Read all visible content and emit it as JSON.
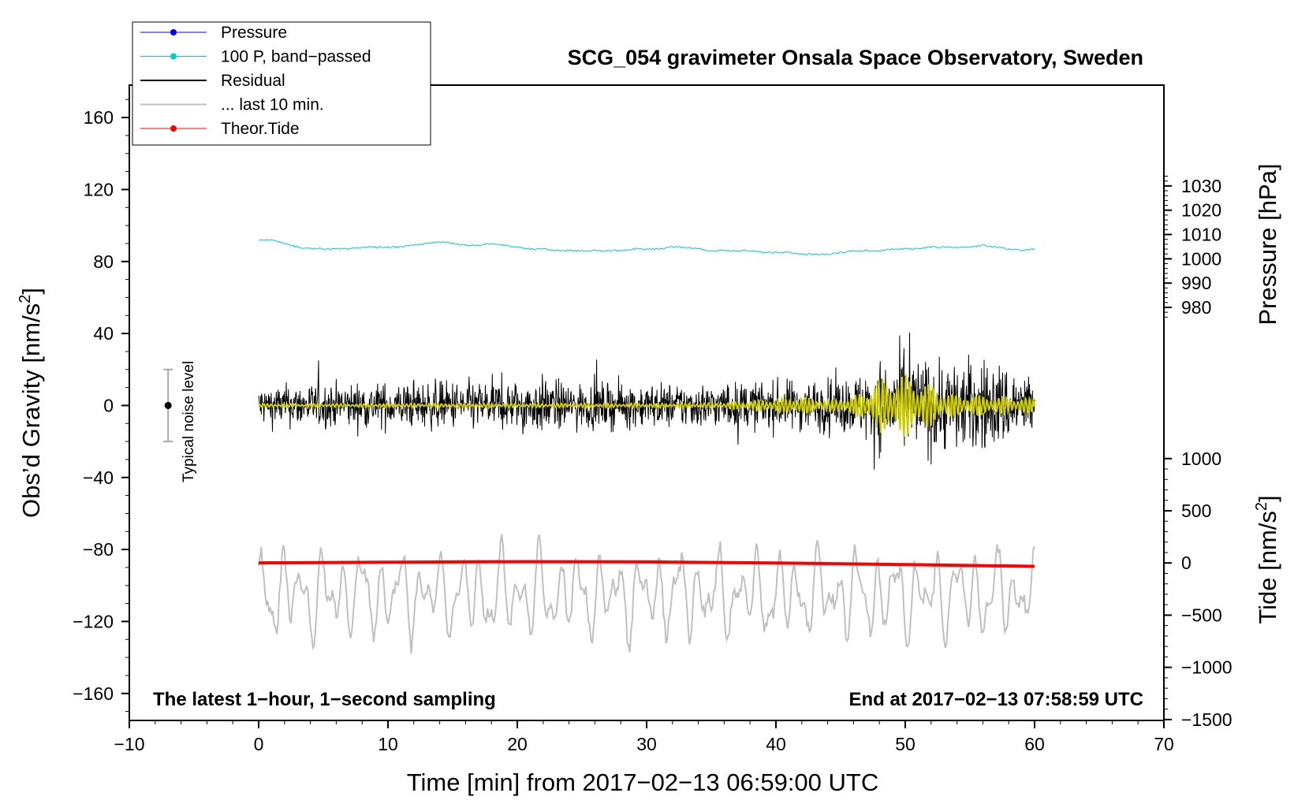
{
  "chart_data": {
    "type": "line",
    "title": "SCG_054 gravimeter Onsala Space Observatory, Sweden",
    "xlabel": "Time [min] from 2017−02−13 06:59:00 UTC",
    "ylabel_left": "Obs’d Gravity [nm/s",
    "ylabel_left_sup": "2",
    "ylabel_left_end": "]",
    "ylabel_right_pressure": "Pressure [hPa]",
    "ylabel_right_tide": "Tide [nm/s",
    "ylabel_right_tide_sup": "2",
    "ylabel_right_tide_end": "]",
    "xlim": [
      -10,
      70
    ],
    "ylim": [
      -175,
      178
    ],
    "x_ticks": [
      {
        "value": -10,
        "label": "−10"
      },
      {
        "value": 0,
        "label": "0"
      },
      {
        "value": 10,
        "label": "10"
      },
      {
        "value": 20,
        "label": "20"
      },
      {
        "value": 30,
        "label": "30"
      },
      {
        "value": 40,
        "label": "40"
      },
      {
        "value": 50,
        "label": "50"
      },
      {
        "value": 60,
        "label": "60"
      },
      {
        "value": 70,
        "label": "70"
      }
    ],
    "y_ticks": [
      {
        "value": 160,
        "label": "160"
      },
      {
        "value": 120,
        "label": "120"
      },
      {
        "value": 80,
        "label": "80"
      },
      {
        "value": 40,
        "label": "40"
      },
      {
        "value": 0,
        "label": "0"
      },
      {
        "value": -40,
        "label": "−40"
      },
      {
        "value": -80,
        "label": "−80"
      },
      {
        "value": -120,
        "label": "−120"
      },
      {
        "value": -160,
        "label": "−160"
      }
    ],
    "pressure_axis": {
      "map": {
        "hPa_at_1000": 81.5,
        "scale_per_hPa": 1.35
      },
      "ticks": [
        {
          "value": 1030,
          "label": "1030"
        },
        {
          "value": 1020,
          "label": "1020"
        },
        {
          "value": 1010,
          "label": "1010"
        },
        {
          "value": 1000,
          "label": "1000"
        },
        {
          "value": 990,
          "label": "990"
        },
        {
          "value": 980,
          "label": "980"
        }
      ]
    },
    "tide_axis": {
      "map": {
        "tide_at_0": -87.5,
        "scale_per_unit": 0.058
      },
      "ticks": [
        {
          "value": 1000,
          "label": "1000"
        },
        {
          "value": 500,
          "label": "500"
        },
        {
          "value": 0,
          "label": "0"
        },
        {
          "value": -500,
          "label": "−500"
        },
        {
          "value": -1000,
          "label": "−1000"
        },
        {
          "value": -1500,
          "label": "−1500"
        }
      ]
    },
    "series": [
      {
        "name": "Pressure",
        "color": "#0000ff",
        "marker": true
      },
      {
        "name": "100 P, band−passed",
        "color": "#00cccc",
        "marker": true,
        "x": [
          0,
          1,
          2,
          3,
          4,
          5,
          6,
          7,
          8,
          9,
          10,
          11,
          12,
          13,
          14,
          15,
          16,
          17,
          18,
          19,
          20,
          21,
          22,
          23,
          24,
          25,
          26,
          27,
          28,
          29,
          30,
          31,
          32,
          33,
          34,
          35,
          36,
          37,
          38,
          39,
          40,
          41,
          42,
          43,
          44,
          45,
          46,
          47,
          48,
          49,
          50,
          51,
          52,
          53,
          54,
          55,
          56,
          57,
          58,
          59,
          60
        ],
        "y": [
          92,
          92,
          90,
          88,
          87,
          87,
          87,
          87,
          88,
          88,
          88,
          88,
          89,
          90,
          91,
          90,
          89,
          89,
          90,
          89,
          88,
          87,
          87,
          86,
          86,
          86,
          86,
          86,
          86,
          87,
          87,
          87,
          88,
          88,
          87,
          86,
          86,
          86,
          86,
          85,
          85,
          85,
          84,
          84,
          84,
          85,
          86,
          86,
          86,
          87,
          87,
          87,
          88,
          88,
          88,
          88,
          89,
          88,
          87,
          86,
          87
        ]
      },
      {
        "name": "Residual",
        "color": "#000000",
        "marker": false,
        "envelope_x": [
          0,
          5,
          10,
          15,
          20,
          22,
          24,
          28,
          32,
          36,
          40,
          44,
          46,
          48,
          50,
          52,
          54,
          56,
          58,
          60
        ],
        "envelope_y": [
          10,
          11,
          11,
          12,
          12,
          14,
          11,
          11,
          11,
          11,
          12,
          13,
          14,
          22,
          24,
          24,
          22,
          23,
          20,
          15
        ]
      },
      {
        "name": "... last 10 min.",
        "color": "#c0c0c0",
        "marker": false
      },
      {
        "name": "Theor.Tide",
        "color": "#ff0000",
        "marker": true,
        "x": [
          0,
          10,
          20,
          30,
          40,
          50,
          60
        ],
        "tide_values": [
          1,
          7,
          12,
          10,
          0,
          -16,
          -32
        ]
      },
      {
        "name": "Filtered residual",
        "color": "#cccc00",
        "marker": false,
        "legend": false,
        "envelope_x": [
          0,
          10,
          20,
          30,
          36,
          38,
          40,
          42,
          44,
          46,
          48,
          50,
          52,
          54,
          56,
          58,
          60
        ],
        "envelope_y": [
          1,
          1,
          1.2,
          1.2,
          1.6,
          3,
          4,
          5,
          3,
          5,
          15,
          18,
          12,
          6,
          6,
          5,
          4
        ]
      }
    ],
    "annotations": [
      {
        "id": "latest",
        "text": "The latest 1−hour, 1−second sampling"
      },
      {
        "id": "end",
        "text": "End at 2017−02−13 07:58:59 UTC"
      },
      {
        "id": "noise",
        "text": "Typical noise level",
        "x": -7,
        "center": 0,
        "half_range": 20
      }
    ],
    "legend_position": "top-left"
  }
}
